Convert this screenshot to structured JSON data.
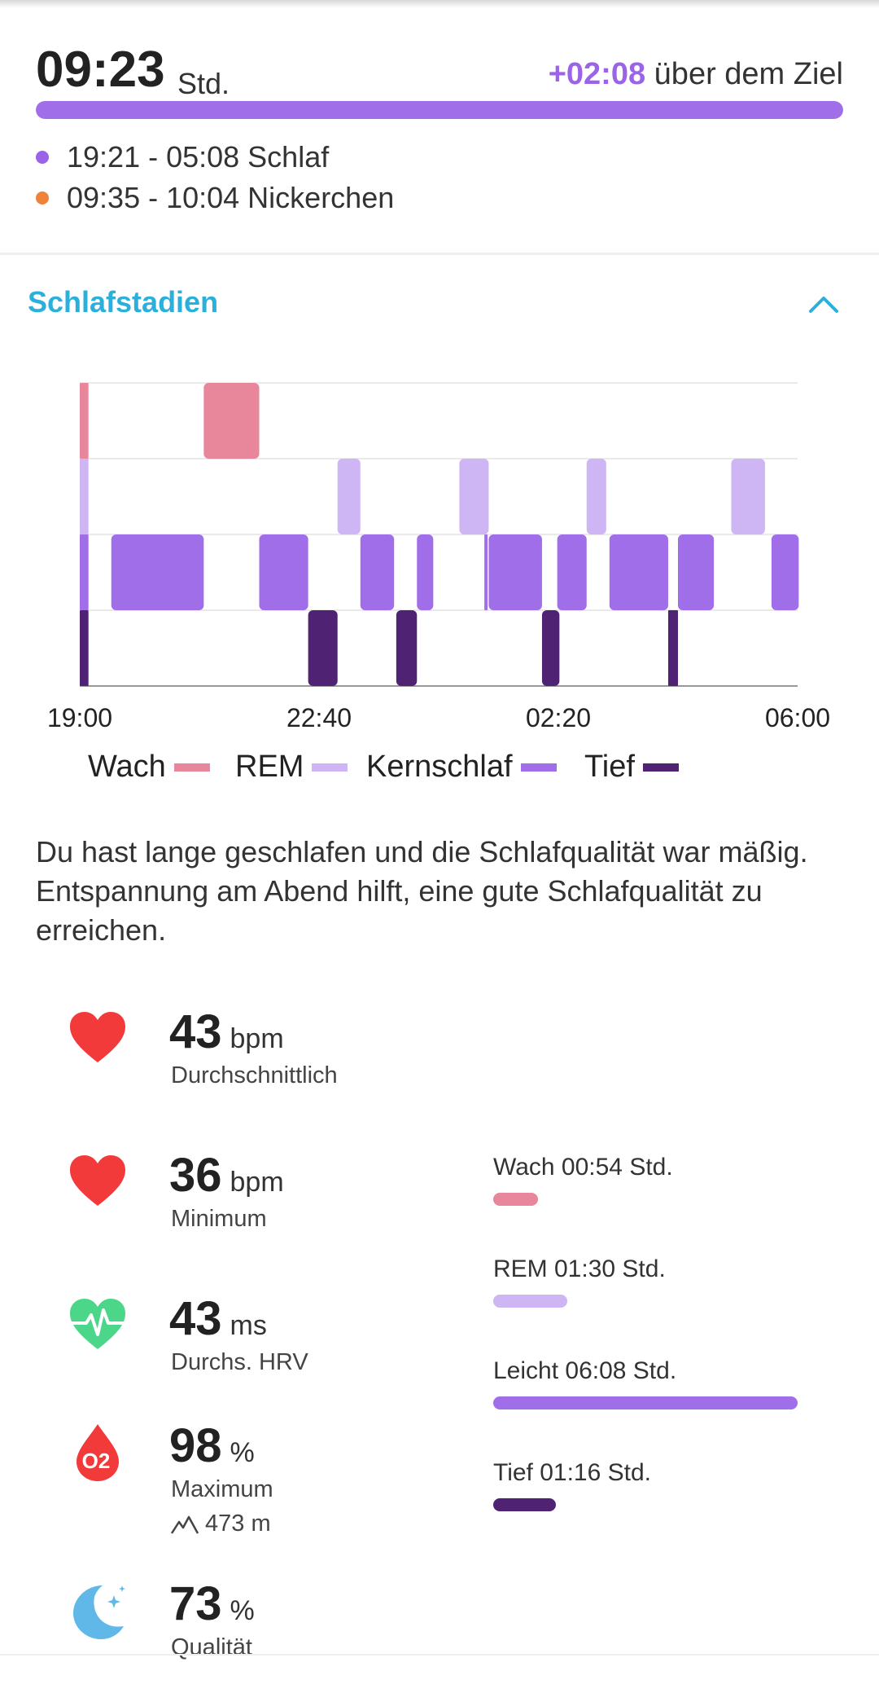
{
  "summary": {
    "duration": "09:23",
    "duration_unit": "Std.",
    "goal_diff": "+02:08",
    "goal_text": "über dem Ziel",
    "goal_progress": 1.0,
    "entries": [
      {
        "text": "19:21 - 05:08 Schlaf",
        "color": "#9b63e8"
      },
      {
        "text": "09:35 - 10:04 Nickerchen",
        "color": "#f0833a"
      }
    ]
  },
  "section": {
    "title": "Schlafstadien"
  },
  "chart_data": {
    "type": "timeline",
    "x_range": [
      "19:00",
      "06:00"
    ],
    "x_ticks": [
      "19:00",
      "22:40",
      "02:20",
      "06:00"
    ],
    "levels": [
      "Wach",
      "REM",
      "Kernschlaf",
      "Tief"
    ],
    "colors": {
      "Wach": "#e8879c",
      "REM": "#cdb6f3",
      "Kernschlaf": "#a06ee9",
      "Tief": "#4f2274"
    },
    "segments": [
      {
        "stage": "Wach",
        "start": "19:00",
        "end": "19:08"
      },
      {
        "stage": "REM",
        "start": "19:00",
        "end": "19:08"
      },
      {
        "stage": "Kernschlaf",
        "start": "19:00",
        "end": "19:08"
      },
      {
        "stage": "Tief",
        "start": "19:00",
        "end": "19:08"
      },
      {
        "stage": "Kernschlaf",
        "start": "19:29",
        "end": "20:54"
      },
      {
        "stage": "Wach",
        "start": "20:54",
        "end": "21:45"
      },
      {
        "stage": "Kernschlaf",
        "start": "21:45",
        "end": "22:30"
      },
      {
        "stage": "Tief",
        "start": "22:30",
        "end": "22:57"
      },
      {
        "stage": "REM",
        "start": "22:57",
        "end": "23:18"
      },
      {
        "stage": "Kernschlaf",
        "start": "23:18",
        "end": "23:49"
      },
      {
        "stage": "Tief",
        "start": "23:51",
        "end": "24:10"
      },
      {
        "stage": "Kernschlaf",
        "start": "24:10",
        "end": "24:25"
      },
      {
        "stage": "REM",
        "start": "24:49",
        "end": "25:16"
      },
      {
        "stage": "Kernschlaf",
        "start": "25:12",
        "end": "25:15"
      },
      {
        "stage": "Kernschlaf",
        "start": "25:16",
        "end": "26:05"
      },
      {
        "stage": "Tief",
        "start": "26:05",
        "end": "26:21"
      },
      {
        "stage": "Kernschlaf",
        "start": "26:19",
        "end": "26:46"
      },
      {
        "stage": "REM",
        "start": "26:46",
        "end": "27:04"
      },
      {
        "stage": "Kernschlaf",
        "start": "27:07",
        "end": "28:01"
      },
      {
        "stage": "Tief",
        "start": "28:01",
        "end": "28:10"
      },
      {
        "stage": "Kernschlaf",
        "start": "28:10",
        "end": "28:43"
      },
      {
        "stage": "REM",
        "start": "28:59",
        "end": "29:30"
      },
      {
        "stage": "Kernschlaf",
        "start": "29:36",
        "end": "30:01"
      }
    ]
  },
  "legend": [
    {
      "label": "Wach",
      "color": "#e8879c"
    },
    {
      "label": "REM",
      "color": "#cdb6f3"
    },
    {
      "label": "Kernschlaf",
      "color": "#a06ee9"
    },
    {
      "label": "Tief",
      "color": "#4f2274"
    }
  ],
  "description": "Du hast lange geschlafen und die Schlafqualität war mäßig. Entspannung am Abend hilft, eine gute Schlafqualität zu erreichen.",
  "metrics": [
    {
      "icon": "heart-icon",
      "value": "43",
      "unit": "bpm",
      "label": "Durchschnittlich"
    },
    {
      "icon": "heart-icon",
      "value": "36",
      "unit": "bpm",
      "label": "Minimum"
    },
    {
      "icon": "heart-pulse-icon",
      "value": "43",
      "unit": "ms",
      "label": "Durchs. HRV"
    },
    {
      "icon": "oxygen-drop-icon",
      "value": "98",
      "unit": "%",
      "label": "Maximum",
      "sub": "473 m",
      "sub_icon": "mountain-icon",
      "badge": "O2"
    },
    {
      "icon": "moon-stars-icon",
      "value": "73",
      "unit": "%",
      "label": "Qualität"
    }
  ],
  "stages": [
    {
      "label": "Wach 00:54 Std.",
      "minutes": 54,
      "color": "#e8879c"
    },
    {
      "label": "REM 01:30 Std.",
      "minutes": 90,
      "color": "#cdb6f3"
    },
    {
      "label": "Leicht 06:08 Std.",
      "minutes": 368,
      "color": "#a06ee9"
    },
    {
      "label": "Tief 01:16 Std.",
      "minutes": 76,
      "color": "#4f2274"
    }
  ]
}
